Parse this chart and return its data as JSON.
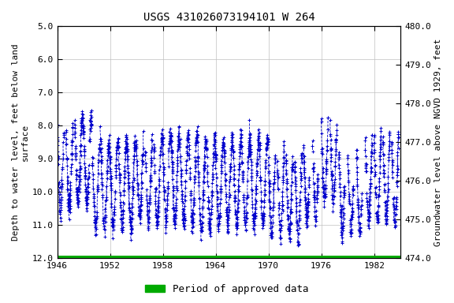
{
  "title": "USGS 431026073194101 W 264",
  "ylabel_left": "Depth to water level, feet below land\nsurface",
  "ylabel_right": "Groundwater level above NGVD 1929, feet",
  "ylim_left": [
    12.0,
    5.0
  ],
  "ylim_right": [
    474.0,
    480.0
  ],
  "yticks_left": [
    5.0,
    6.0,
    7.0,
    8.0,
    9.0,
    10.0,
    11.0,
    12.0
  ],
  "yticks_right": [
    474.0,
    475.0,
    476.0,
    477.0,
    478.0,
    479.0,
    480.0
  ],
  "xticks": [
    1946,
    1952,
    1958,
    1964,
    1970,
    1976,
    1982
  ],
  "xlim": [
    1946,
    1985
  ],
  "data_color": "#0000cc",
  "grid_color": "#c0c0c0",
  "bg_color": "#ffffff",
  "approved_color": "#00aa00",
  "title_fontsize": 10,
  "axis_label_fontsize": 8,
  "tick_fontsize": 8,
  "legend_fontsize": 9
}
